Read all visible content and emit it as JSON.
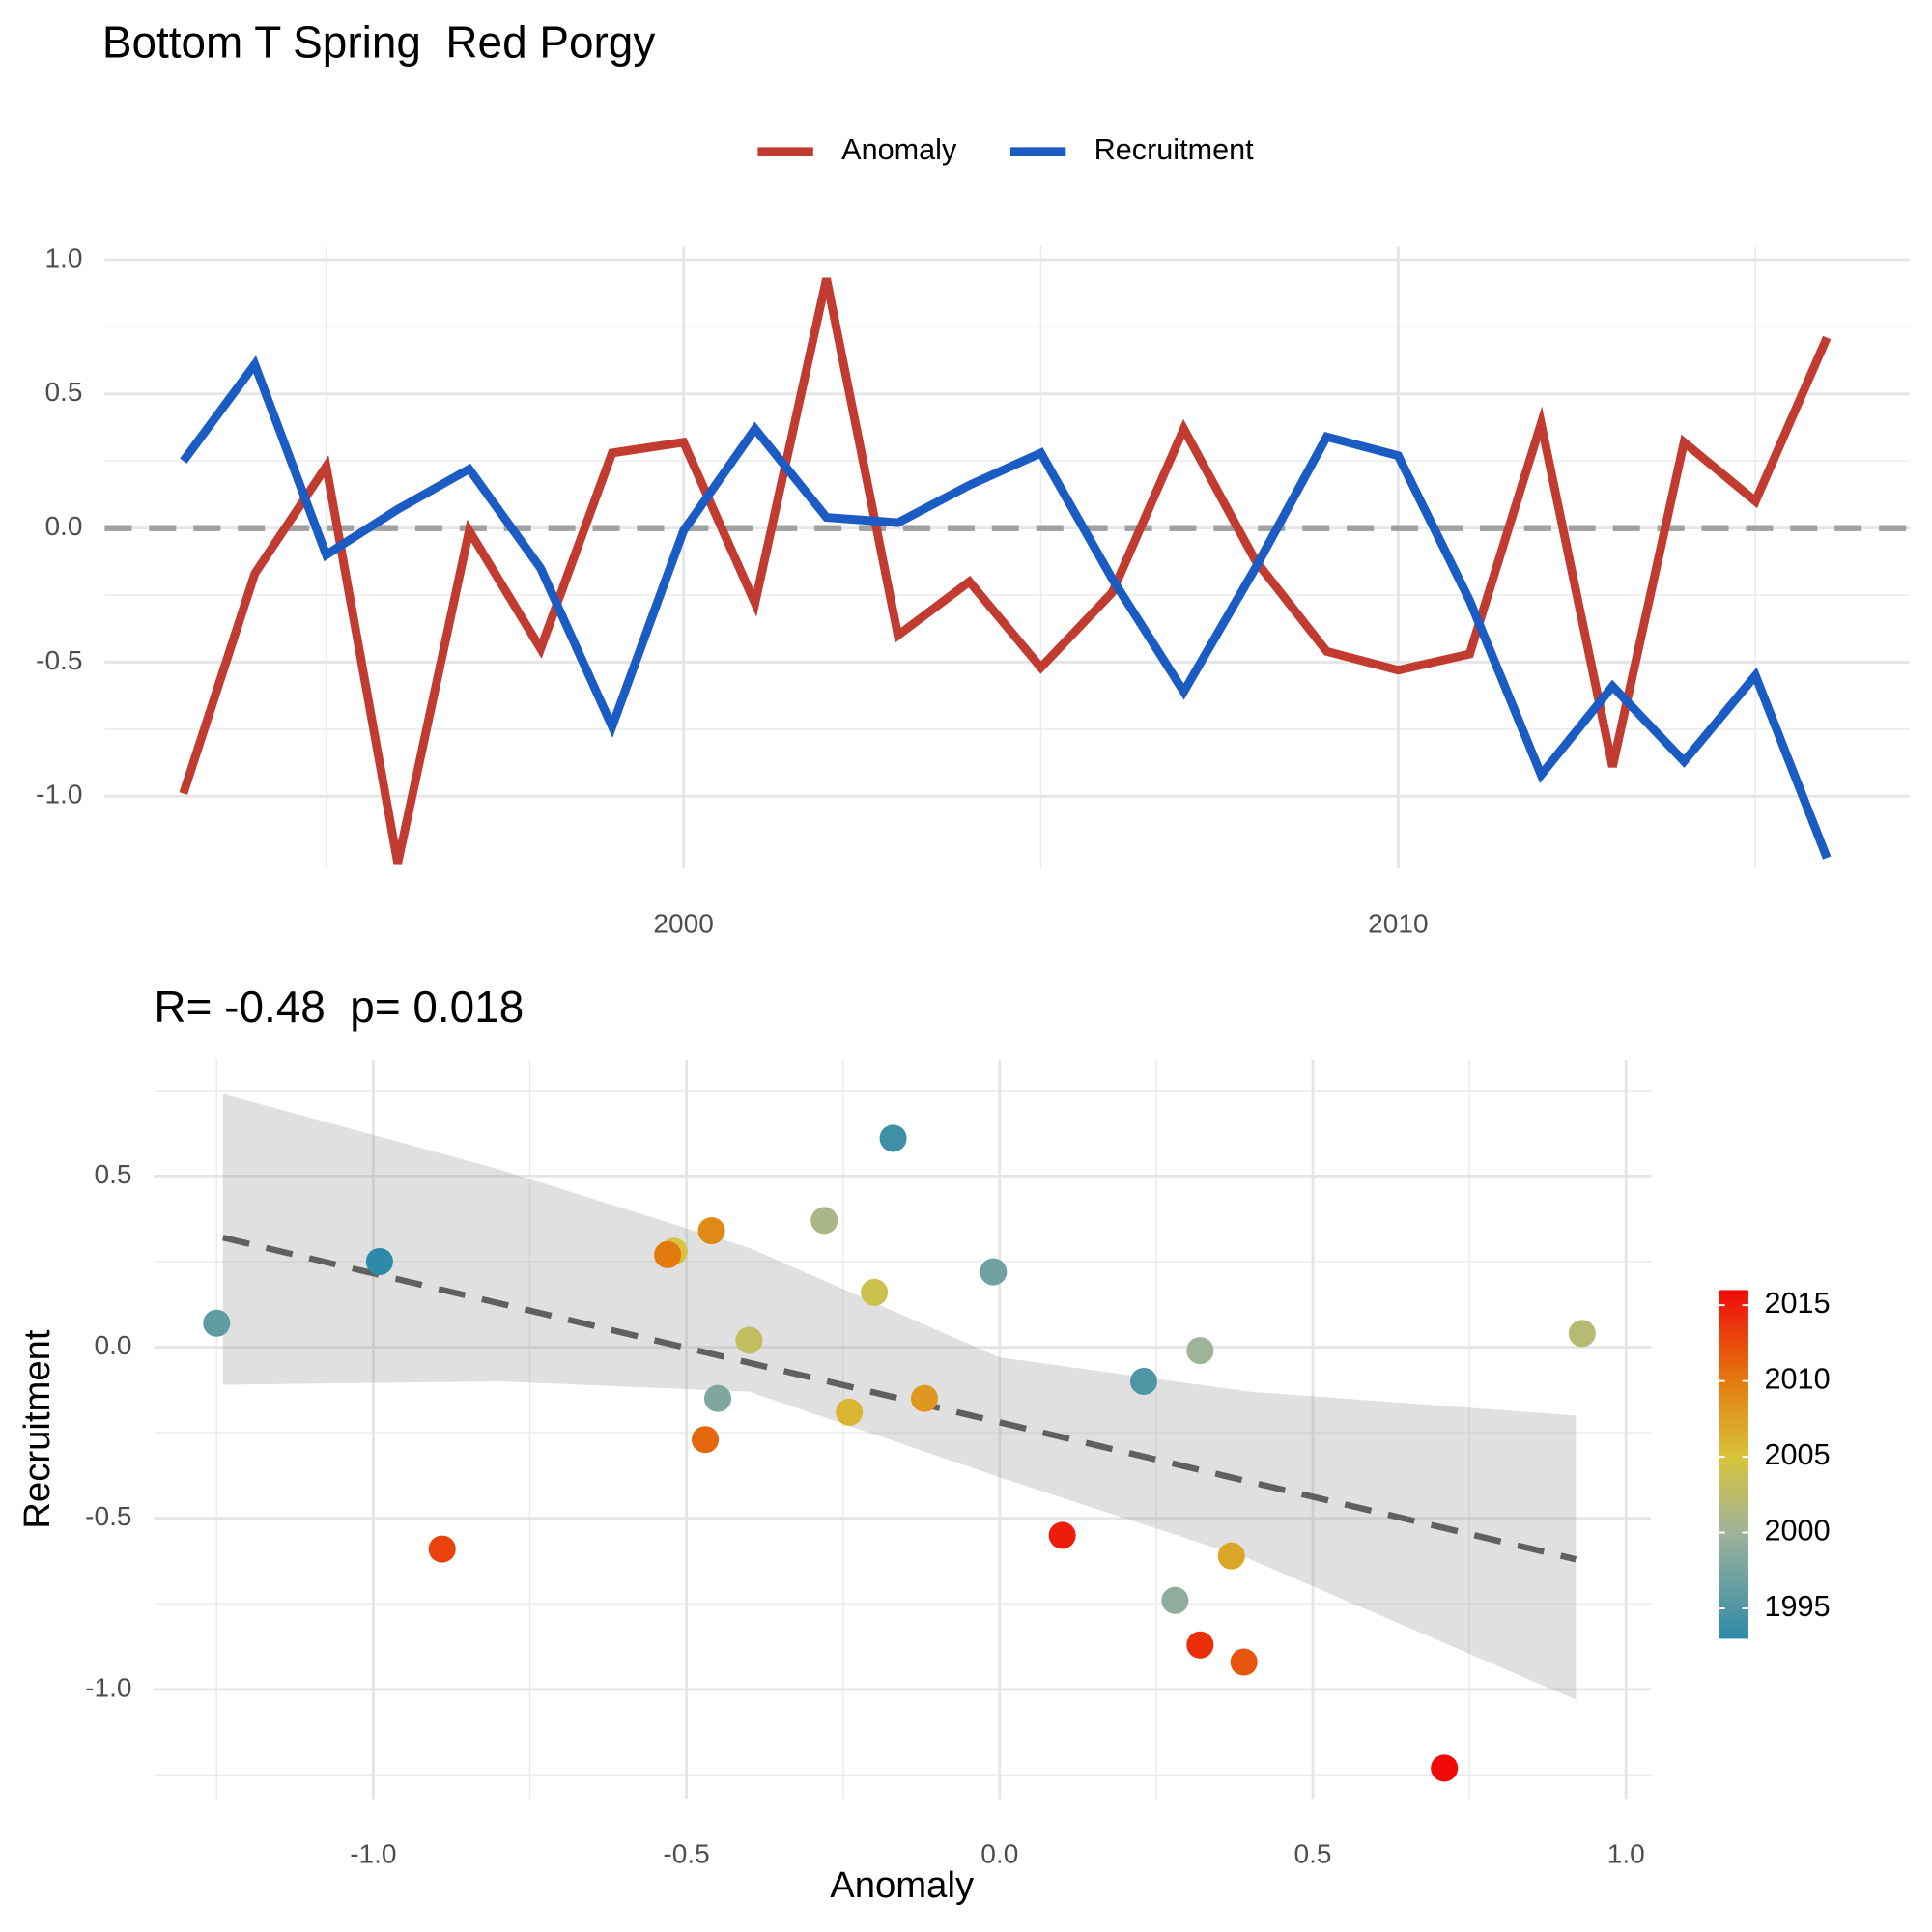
{
  "chart_data": [
    {
      "type": "line",
      "title": "Bottom T Spring  Red Porgy",
      "x": [
        1993,
        1994,
        1995,
        1996,
        1997,
        1998,
        1999,
        2000,
        2001,
        2002,
        2003,
        2004,
        2005,
        2006,
        2007,
        2008,
        2009,
        2010,
        2011,
        2012,
        2013,
        2014,
        2015,
        2016
      ],
      "series": [
        {
          "name": "Anomaly",
          "color": "#c23b30",
          "values": [
            -0.99,
            -0.17,
            0.23,
            -1.25,
            -0.01,
            -0.45,
            0.28,
            0.32,
            -0.28,
            0.93,
            -0.4,
            -0.2,
            -0.52,
            -0.24,
            0.37,
            -0.12,
            -0.46,
            -0.53,
            -0.47,
            0.39,
            -0.89,
            0.32,
            0.1,
            0.71
          ]
        },
        {
          "name": "Recruitment",
          "color": "#1a5cc4",
          "values": [
            0.25,
            0.61,
            -0.1,
            0.07,
            0.22,
            -0.15,
            -0.74,
            -0.01,
            0.37,
            0.04,
            0.02,
            0.16,
            0.28,
            -0.19,
            -0.61,
            -0.15,
            0.34,
            0.27,
            -0.27,
            -0.92,
            -0.59,
            -0.87,
            -0.55,
            -1.23
          ]
        }
      ],
      "xlim": [
        1991.9,
        2017.16
      ],
      "xticks": [
        2000,
        2010
      ],
      "x_minor_ticks": [
        1995,
        2005,
        2015
      ],
      "ylim": [
        -1.27,
        1.05
      ],
      "yticks": [
        {
          "value": -1,
          "label": "-1.0"
        },
        -0.5,
        {
          "value": 0,
          "label": "0.0"
        },
        0.5,
        {
          "value": 1,
          "label": "1.0"
        }
      ],
      "y_minor_ticks": [
        -0.75,
        -0.25,
        0.25,
        0.75
      ],
      "hline": 0,
      "grid": true,
      "legend": "top"
    },
    {
      "type": "scatter",
      "title": "R= -0.48  p= 0.018",
      "xlabel": "Anomaly",
      "ylabel": "Recruitment",
      "x": [
        -0.99,
        -0.17,
        0.23,
        -1.25,
        -0.01,
        -0.45,
        0.28,
        0.32,
        -0.28,
        0.93,
        -0.4,
        -0.2,
        -0.52,
        -0.24,
        0.37,
        -0.12,
        -0.46,
        -0.53,
        -0.47,
        0.39,
        -0.89,
        0.32,
        0.1,
        0.71
      ],
      "y": [
        0.25,
        0.61,
        -0.1,
        0.07,
        0.22,
        -0.15,
        -0.74,
        -0.01,
        0.37,
        0.04,
        0.02,
        0.16,
        0.28,
        -0.19,
        -0.61,
        -0.15,
        0.34,
        0.27,
        -0.27,
        -0.92,
        -0.59,
        -0.87,
        -0.55,
        -1.23
      ],
      "years": [
        1993,
        1994,
        1995,
        1996,
        1997,
        1998,
        1999,
        2000,
        2001,
        2002,
        2003,
        2004,
        2005,
        2006,
        2007,
        2008,
        2009,
        2010,
        2011,
        2012,
        2013,
        2014,
        2015,
        2016
      ],
      "fit_x": [
        -1.24,
        0.92
      ],
      "fit_y": [
        0.32,
        -0.62
      ],
      "fit_color": "#606060",
      "band_x": [
        -1.24,
        -0.8,
        -0.4,
        0,
        0.4,
        0.92
      ],
      "band_upper": [
        0.74,
        0.52,
        0.29,
        -0.03,
        -0.13,
        -0.2
      ],
      "band_lower": [
        -0.11,
        -0.1,
        -0.13,
        -0.38,
        -0.62,
        -1.03
      ],
      "xlim": [
        -1.35,
        1.04
      ],
      "xticks": [
        {
          "value": -1,
          "label": "-1.0"
        },
        -0.5,
        {
          "value": 0,
          "label": "0.0"
        },
        0.5,
        {
          "value": 1,
          "label": "1.0"
        }
      ],
      "x_minor_ticks": [
        -1.25,
        -0.75,
        -0.25,
        0.25,
        0.75
      ],
      "ylim": [
        -1.32,
        0.84
      ],
      "yticks": [
        {
          "value": -1,
          "label": "-1.0"
        },
        -0.5,
        {
          "value": 0,
          "label": "0.0"
        },
        0.5
      ],
      "y_minor_ticks": [
        -1.25,
        -0.75,
        -0.25,
        0.25,
        0.75
      ],
      "colorbar_range": [
        1993,
        2016
      ],
      "colorbar_ticks": [
        1995,
        2000,
        2005,
        2010,
        2015
      ],
      "colorscale": [
        [
          1993,
          "#2e8aa8"
        ],
        [
          2000,
          "#9fb39a"
        ],
        [
          2005,
          "#d8c43a"
        ],
        [
          2010,
          "#e27a0e"
        ],
        [
          2016,
          "#f00a0a"
        ]
      ],
      "grid": true
    }
  ]
}
